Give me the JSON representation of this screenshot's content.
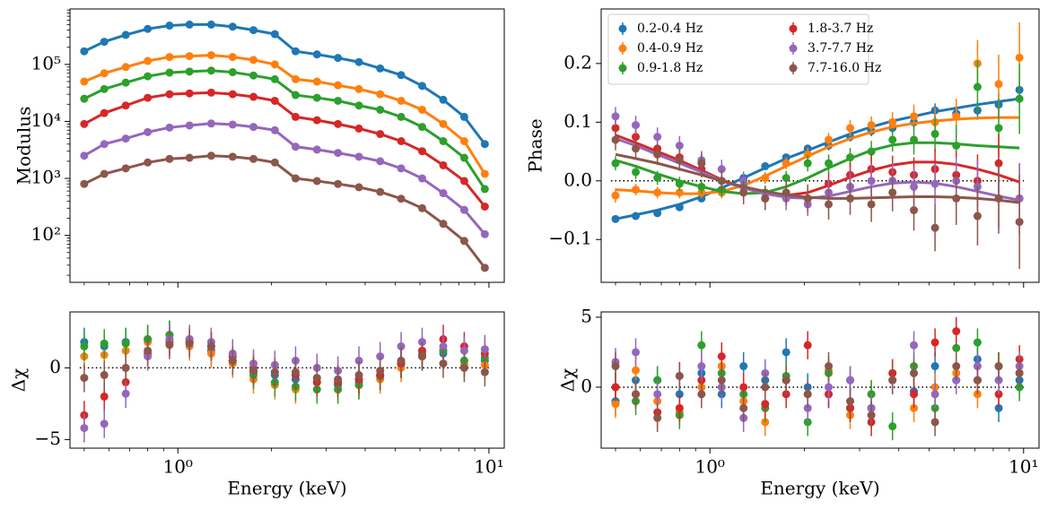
{
  "chart_data": [
    {
      "type": "scatter",
      "ylabel": "Modulus",
      "log_y": true,
      "connect": true,
      "x": [
        0.5,
        0.58,
        0.68,
        0.8,
        0.94,
        1.09,
        1.28,
        1.5,
        1.75,
        2.05,
        2.39,
        2.8,
        3.27,
        3.82,
        4.47,
        5.22,
        6.1,
        7.13,
        8.33,
        9.7
      ],
      "xlim": [
        0.45,
        11.2
      ],
      "xticks": [
        1,
        10
      ],
      "ylim": [
        15,
        940000
      ],
      "yticks": [
        {
          "value": 100,
          "label": "10²"
        },
        {
          "value": 1000,
          "label": "10³"
        },
        {
          "value": 10000,
          "label": "10⁴"
        },
        {
          "value": 100000,
          "label": "10⁵"
        }
      ],
      "series": [
        {
          "color": "#1f77b4",
          "values": [
            170000,
            250000,
            330000,
            420000,
            480000,
            500000,
            500000,
            460000,
            400000,
            340000,
            170000,
            150000,
            130000,
            110000,
            85000,
            65000,
            42000,
            24000,
            12000,
            4000
          ]
        },
        {
          "color": "#ff7f0e",
          "values": [
            50000,
            70000,
            90000,
            115000,
            135000,
            140000,
            145000,
            135000,
            120000,
            100000,
            55000,
            50000,
            43000,
            37000,
            30000,
            23000,
            16000,
            9000,
            4500,
            1200
          ]
        },
        {
          "color": "#2ca02c",
          "values": [
            25000,
            37000,
            48000,
            62000,
            72000,
            75000,
            78000,
            73000,
            64000,
            55000,
            29000,
            26000,
            23000,
            19000,
            16000,
            12000,
            8000,
            4500,
            2300,
            650
          ]
        },
        {
          "color": "#d62728",
          "values": [
            9000,
            14000,
            19000,
            26000,
            30000,
            31000,
            32000,
            30000,
            27000,
            23000,
            12000,
            10500,
            9000,
            7500,
            6000,
            4500,
            3000,
            1700,
            900,
            320
          ]
        },
        {
          "color": "#9467bd",
          "values": [
            2500,
            4000,
            5000,
            6500,
            7800,
            8500,
            9200,
            8800,
            8000,
            7000,
            3600,
            3200,
            2800,
            2400,
            2000,
            1500,
            1000,
            550,
            280,
            105
          ]
        },
        {
          "color": "#8c564b",
          "values": [
            800,
            1200,
            1500,
            1900,
            2200,
            2300,
            2500,
            2400,
            2200,
            1900,
            1000,
            900,
            800,
            700,
            580,
            440,
            300,
            160,
            80,
            27
          ]
        }
      ]
    },
    {
      "type": "scatter",
      "ylabel": "Phase",
      "legend": "upper left",
      "hline": 0,
      "x": [
        0.5,
        0.58,
        0.68,
        0.8,
        0.94,
        1.09,
        1.28,
        1.5,
        1.75,
        2.05,
        2.39,
        2.8,
        3.27,
        3.82,
        4.47,
        5.22,
        6.1,
        7.13,
        8.33,
        9.7
      ],
      "xlim": [
        0.45,
        11.2
      ],
      "xticks": [
        1,
        10
      ],
      "ylim": [
        -0.173,
        0.293
      ],
      "yticks": [
        {
          "value": -0.1,
          "label": "−0.1"
        },
        {
          "value": 0,
          "label": "0.0"
        },
        0.1,
        0.2
      ],
      "series": [
        {
          "name": "0.2-0.4 Hz",
          "color": "#1f77b4",
          "values": [
            -0.065,
            -0.06,
            -0.055,
            -0.045,
            -0.03,
            -0.015,
            0.005,
            0.025,
            0.04,
            0.055,
            0.06,
            0.075,
            0.085,
            0.09,
            0.1,
            0.12,
            0.115,
            0.12,
            0.13,
            0.155
          ],
          "errors": [
            0.006,
            0.006,
            0.006,
            0.006,
            0.006,
            0.006,
            0.006,
            0.006,
            0.006,
            0.007,
            0.008,
            0.008,
            0.009,
            0.01,
            0.01,
            0.012,
            0.014,
            0.016,
            0.02,
            0.025
          ],
          "model": [
            -0.065,
            -0.058,
            -0.05,
            -0.04,
            -0.027,
            -0.012,
            0.005,
            0.022,
            0.038,
            0.052,
            0.066,
            0.08,
            0.092,
            0.102,
            0.11,
            0.118,
            0.124,
            0.13,
            0.135,
            0.14
          ]
        },
        {
          "name": "0.4-0.9 Hz",
          "color": "#ff7f0e",
          "values": [
            -0.025,
            -0.015,
            -0.02,
            -0.02,
            -0.02,
            -0.02,
            -0.01,
            0.005,
            0.03,
            0.045,
            0.07,
            0.09,
            0.095,
            0.1,
            0.11,
            0.1,
            0.11,
            0.2,
            0.165,
            0.21
          ],
          "errors": [
            0.012,
            0.01,
            0.01,
            0.01,
            0.01,
            0.01,
            0.01,
            0.01,
            0.01,
            0.012,
            0.012,
            0.014,
            0.015,
            0.017,
            0.02,
            0.025,
            0.03,
            0.04,
            0.05,
            0.06
          ],
          "model": [
            -0.015,
            -0.017,
            -0.02,
            -0.022,
            -0.022,
            -0.018,
            -0.008,
            0.008,
            0.025,
            0.042,
            0.058,
            0.072,
            0.083,
            0.092,
            0.098,
            0.102,
            0.105,
            0.107,
            0.108,
            0.108
          ]
        },
        {
          "name": "0.9-1.8 Hz",
          "color": "#2ca02c",
          "values": [
            0.03,
            0.015,
            0.005,
            -0.005,
            -0.01,
            -0.015,
            -0.01,
            -0.02,
            0.005,
            0.03,
            0.03,
            0.04,
            0.05,
            0.07,
            0.07,
            0.08,
            0.06,
            0.16,
            0.09,
            0.14
          ],
          "errors": [
            0.012,
            0.012,
            0.012,
            0.012,
            0.012,
            0.012,
            0.012,
            0.012,
            0.012,
            0.014,
            0.015,
            0.016,
            0.018,
            0.02,
            0.025,
            0.03,
            0.035,
            0.045,
            0.05,
            0.06
          ],
          "model": [
            0.035,
            0.025,
            0.012,
            0,
            -0.01,
            -0.018,
            -0.022,
            -0.02,
            -0.01,
            0.005,
            0.022,
            0.038,
            0.052,
            0.061,
            0.065,
            0.065,
            0.063,
            0.06,
            0.058,
            0.056
          ]
        },
        {
          "name": "1.8-3.7 Hz",
          "color": "#d62728",
          "values": [
            0.09,
            0.075,
            0.055,
            0.04,
            0.02,
            0,
            -0.02,
            -0.03,
            -0.025,
            -0.03,
            -0.005,
            0.01,
            0.02,
            0.015,
            0.01,
            0.02,
            0.01,
            0,
            0.03,
            -0.03
          ],
          "errors": [
            0.015,
            0.014,
            0.014,
            0.014,
            0.014,
            0.014,
            0.014,
            0.015,
            0.016,
            0.018,
            0.02,
            0.022,
            0.025,
            0.028,
            0.03,
            0.035,
            0.04,
            0.045,
            0.05,
            0.06
          ],
          "model": [
            0.078,
            0.065,
            0.05,
            0.035,
            0.018,
            0.002,
            -0.012,
            -0.022,
            -0.025,
            -0.02,
            -0.008,
            0.006,
            0.018,
            0.027,
            0.032,
            0.032,
            0.028,
            0.02,
            0.01,
            -0.002
          ]
        },
        {
          "name": "3.7-7.7 Hz",
          "color": "#9467bd",
          "values": [
            0.11,
            0.095,
            0.075,
            0.06,
            0.035,
            0.02,
            0,
            -0.03,
            -0.03,
            -0.04,
            -0.02,
            -0.01,
            0,
            0,
            -0.01,
            -0.005,
            0,
            -0.01,
            -0.03,
            -0.03
          ],
          "errors": [
            0.016,
            0.016,
            0.016,
            0.016,
            0.016,
            0.016,
            0.016,
            0.018,
            0.02,
            0.02,
            0.022,
            0.025,
            0.028,
            0.03,
            0.032,
            0.035,
            0.04,
            0.045,
            0.05,
            0.06
          ],
          "model": [
            0.072,
            0.06,
            0.045,
            0.03,
            0.015,
            0,
            -0.012,
            -0.022,
            -0.028,
            -0.03,
            -0.026,
            -0.018,
            -0.01,
            -0.004,
            -0.002,
            -0.004,
            -0.01,
            -0.018,
            -0.026,
            -0.033
          ]
        },
        {
          "name": "7.7-16.0 Hz",
          "color": "#8c564b",
          "values": [
            0.07,
            0.055,
            0.045,
            0.035,
            0.03,
            0,
            -0.02,
            -0.03,
            -0.02,
            -0.03,
            -0.04,
            -0.03,
            -0.04,
            -0.02,
            -0.05,
            -0.08,
            -0.03,
            -0.06,
            -0.03,
            -0.07
          ],
          "errors": [
            0.018,
            0.018,
            0.018,
            0.018,
            0.018,
            0.018,
            0.02,
            0.02,
            0.022,
            0.024,
            0.026,
            0.028,
            0.03,
            0.032,
            0.035,
            0.04,
            0.045,
            0.05,
            0.06,
            0.08
          ],
          "model": [
            0.045,
            0.038,
            0.03,
            0.02,
            0.01,
            0,
            -0.01,
            -0.018,
            -0.024,
            -0.028,
            -0.03,
            -0.03,
            -0.029,
            -0.028,
            -0.027,
            -0.027,
            -0.028,
            -0.03,
            -0.033,
            -0.037
          ]
        }
      ]
    },
    {
      "type": "scatter",
      "ylabel": "Δχ",
      "xlabel": "Energy (keV)",
      "hline": 0,
      "error": 1,
      "x": [
        0.5,
        0.58,
        0.68,
        0.8,
        0.94,
        1.09,
        1.28,
        1.5,
        1.75,
        2.05,
        2.39,
        2.8,
        3.27,
        3.82,
        4.47,
        5.22,
        6.1,
        7.13,
        8.33,
        9.7
      ],
      "xlim": [
        0.45,
        11.2
      ],
      "xticks": [
        {
          "value": 1,
          "label": "10⁰"
        },
        {
          "value": 10,
          "label": "10¹"
        }
      ],
      "ylim": [
        -5.6,
        3.9
      ],
      "yticks": [
        {
          "value": -5,
          "label": "−5"
        },
        0
      ],
      "series": [
        {
          "color": "#1f77b4",
          "values": [
            1.8,
            1.5,
            1.8,
            2.0,
            2.3,
            1.8,
            1.2,
            0.5,
            -0.3,
            -0.5,
            -0.8,
            -1.0,
            -1.2,
            -1.0,
            -0.5,
            0.3,
            0.8,
            1.0,
            0.5,
            0.5
          ]
        },
        {
          "color": "#ff7f0e",
          "values": [
            0.8,
            0.9,
            1.2,
            1.8,
            2.0,
            1.5,
            1.0,
            0.3,
            -0.8,
            -1.2,
            -1.5,
            -1.5,
            -1.5,
            -1.2,
            -0.8,
            0,
            0.8,
            1.2,
            0.2,
            0.2
          ]
        },
        {
          "color": "#2ca02c",
          "values": [
            1.5,
            1.7,
            1.7,
            2.0,
            2.3,
            2.0,
            1.5,
            0.5,
            -0.5,
            -1.0,
            -1.3,
            -1.5,
            -1.5,
            -1.2,
            -0.6,
            0.3,
            1.0,
            1.2,
            0.5,
            0.7
          ]
        },
        {
          "color": "#d62728",
          "values": [
            -3.3,
            -2.0,
            -1.0,
            1.0,
            1.8,
            1.8,
            1.5,
            0.8,
            0,
            -0.3,
            -0.5,
            -1.0,
            -1.0,
            -0.8,
            -0.5,
            0.3,
            1.2,
            2.0,
            1.5,
            1.0
          ]
        },
        {
          "color": "#9467bd",
          "values": [
            -4.2,
            -3.9,
            -1.8,
            0.8,
            2.0,
            2.0,
            1.8,
            1.0,
            0.3,
            0.2,
            0.5,
            0,
            -0.2,
            0.5,
            0.8,
            1.5,
            1.8,
            1.5,
            1.2,
            1.3
          ]
        },
        {
          "color": "#8c564b",
          "values": [
            -0.7,
            -0.5,
            0,
            1.2,
            1.6,
            1.7,
            1.5,
            0.5,
            -0.2,
            -0.3,
            -0.3,
            -0.7,
            -0.8,
            -0.5,
            -0.2,
            0.5,
            0.8,
            0.3,
            0,
            -0.3
          ]
        }
      ]
    },
    {
      "type": "scatter",
      "ylabel": "Δχ",
      "xlabel": "Energy (keV)",
      "hline": 0,
      "error": 1,
      "x": [
        0.5,
        0.58,
        0.68,
        0.8,
        0.94,
        1.09,
        1.28,
        1.5,
        1.75,
        2.05,
        2.39,
        2.8,
        3.27,
        3.82,
        4.47,
        5.22,
        6.1,
        7.13,
        8.33,
        9.7
      ],
      "xlim": [
        0.45,
        11.2
      ],
      "xticks": [
        {
          "value": 1,
          "label": "10⁰"
        },
        {
          "value": 10,
          "label": "10¹"
        }
      ],
      "ylim": [
        -4.36,
        5.38
      ],
      "yticks": [
        0,
        5
      ],
      "series": [
        {
          "color": "#1f77b4",
          "values": [
            -1,
            0.5,
            0.5,
            -0.5,
            1,
            -0.5,
            1.5,
            0.5,
            2.5,
            0,
            -0.5,
            0.5,
            -1.5,
            0.5,
            -0.3,
            1.5,
            0.5,
            2,
            -1.5,
            0.5
          ]
        },
        {
          "color": "#ff7f0e",
          "values": [
            -1.2,
            1.2,
            -1,
            -1.8,
            0,
            1.5,
            -1,
            -2.5,
            0.5,
            -0.5,
            1.2,
            -2,
            -0.5,
            1,
            -1.5,
            0,
            1,
            -0.5,
            1.5,
            1
          ]
        },
        {
          "color": "#2ca02c",
          "values": [
            0,
            -1,
            0.5,
            -2,
            3,
            1,
            -0.5,
            -1.5,
            0.8,
            -2.5,
            1,
            -1.5,
            -0.5,
            -2.8,
            1.5,
            -1.5,
            2.8,
            3.2,
            1.5,
            0
          ]
        },
        {
          "color": "#d62728",
          "values": [
            0,
            -0.5,
            -1.8,
            -1.5,
            0.5,
            2.2,
            0,
            -1.2,
            -0.5,
            3,
            -0.5,
            -1.5,
            -2.5,
            1,
            -0.5,
            3.2,
            4,
            0.5,
            -0.5,
            2
          ]
        },
        {
          "color": "#9467bd",
          "values": [
            1.8,
            2.5,
            -0.5,
            0.8,
            1.5,
            0,
            -2.2,
            1,
            0.5,
            -1.5,
            0,
            0.5,
            -1.5,
            0.5,
            3,
            -0.5,
            0.5,
            1.5,
            0.5,
            1.5
          ]
        },
        {
          "color": "#8c564b",
          "values": [
            1.5,
            -0.5,
            -2.2,
            0.8,
            -0.5,
            0.5,
            -1.5,
            0,
            0.5,
            -0.5,
            1.5,
            -1,
            -2,
            0.5,
            1,
            -2.5,
            1.5,
            0.5,
            1.5,
            1
          ]
        }
      ]
    }
  ]
}
